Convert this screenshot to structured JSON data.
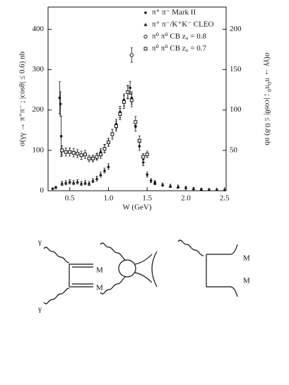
{
  "chart_data": {
    "type": "scatter",
    "xlabel": "W (GeV)",
    "ylabel": "σ(γγ → π⁺π⁻ ; |cosθ| ≤ 0.6) nb",
    "y2label": "σ(γγ → π⁰π⁰ ; |cosθ| ≤ 0.8) nb",
    "xlim": [
      0.22,
      2.52
    ],
    "xticks": [
      0.5,
      {
        "value": 1,
        "label": "1.0"
      },
      1.5,
      {
        "value": 2,
        "label": "2.0"
      },
      2.5
    ],
    "ylim": [
      0,
      455
    ],
    "yticks": [
      0,
      100,
      200,
      300,
      400
    ],
    "y2lim": [
      0,
      227.5
    ],
    "y2ticks": [
      50,
      100,
      150,
      200
    ],
    "legend": "top-right",
    "series": [
      {
        "name": "π⁺ π⁻ Mark II",
        "marker": "circle",
        "color": "#111111",
        "x": [
          0.28,
          0.32,
          0.37,
          0.38,
          0.39,
          0.8,
          0.85,
          0.9,
          0.95,
          1.0,
          1.05,
          1.1,
          1.15,
          1.2,
          1.25,
          1.28,
          1.3,
          1.35,
          1.4,
          1.45,
          1.5,
          1.55,
          1.6
        ],
        "values": [
          5,
          8,
          230,
          215,
          135,
          80,
          85,
          95,
          105,
          120,
          140,
          165,
          195,
          225,
          245,
          255,
          230,
          160,
          110,
          70,
          40,
          25,
          20
        ],
        "errors": [
          2,
          3,
          40,
          30,
          50,
          8,
          8,
          9,
          10,
          10,
          12,
          12,
          14,
          15,
          16,
          16,
          15,
          12,
          10,
          8,
          6,
          5,
          4
        ]
      },
      {
        "name": "π⁺ π⁻/K⁺K⁻ CLEO",
        "marker": "triangle",
        "color": "#111111",
        "x": [
          0.4,
          0.45,
          0.5,
          0.55,
          0.6,
          0.65,
          0.7,
          0.75,
          0.8,
          0.85,
          0.9,
          0.95,
          1.0,
          1.6,
          1.7,
          1.8,
          1.9,
          2.0,
          2.1,
          2.2,
          2.3,
          2.4,
          2.5
        ],
        "values": [
          18,
          20,
          22,
          20,
          22,
          18,
          20,
          18,
          25,
          30,
          40,
          50,
          60,
          20,
          15,
          12,
          10,
          8,
          5,
          4,
          3,
          3,
          2
        ],
        "errors": [
          5,
          5,
          5,
          5,
          5,
          5,
          5,
          5,
          5,
          6,
          6,
          6,
          7,
          5,
          4,
          4,
          4,
          3,
          3,
          2,
          2,
          2,
          2
        ]
      },
      {
        "name": "π⁰ π⁰ CB z₀ = 0.8",
        "marker": "open-circle",
        "color": "#111111",
        "axis": "y2",
        "x": [
          1.3
        ],
        "values": [
          168
        ],
        "errors": [
          9
        ]
      },
      {
        "name": "π⁰ π⁰ CB z₀ = 0.7",
        "marker": "square",
        "color": "#111111",
        "axis": "y2",
        "x": [
          0.4,
          0.45,
          0.5,
          0.55,
          0.6,
          0.65,
          0.7,
          0.75,
          0.8,
          0.85,
          0.9,
          0.95,
          1.0,
          1.05,
          1.1,
          1.15,
          1.2,
          1.25,
          1.3,
          1.35,
          1.4,
          1.45,
          1.5
        ],
        "values": [
          50,
          48,
          48,
          47,
          46,
          44,
          45,
          40,
          40,
          42,
          45,
          52,
          60,
          70,
          80,
          95,
          110,
          122,
          112,
          85,
          62,
          42,
          45
        ],
        "errors": [
          6,
          5,
          5,
          5,
          5,
          5,
          5,
          4,
          4,
          4,
          5,
          5,
          5,
          6,
          6,
          7,
          8,
          8,
          8,
          7,
          6,
          4,
          4
        ]
      }
    ]
  },
  "diagram_labels": {
    "left": [
      "γ",
      "M",
      "M",
      "γ"
    ],
    "right": [
      "M",
      "M"
    ]
  }
}
